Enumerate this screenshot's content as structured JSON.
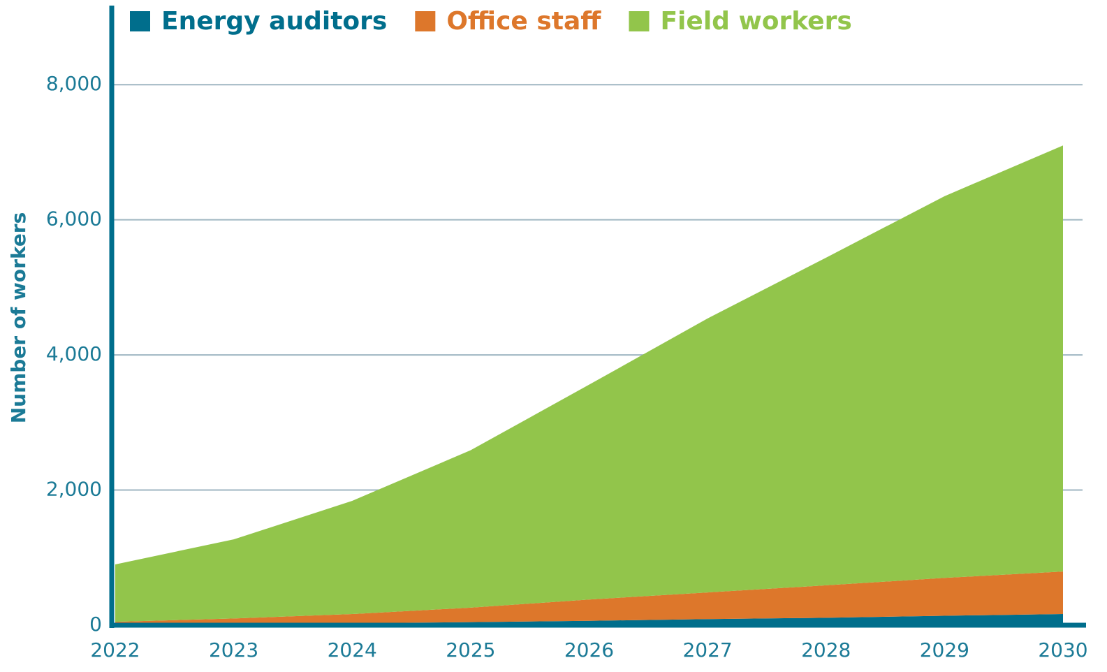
{
  "chart_data": {
    "type": "stacked_area",
    "y_label": "Number of workers",
    "categories": [
      "2022",
      "2023",
      "2024",
      "2025",
      "2026",
      "2027",
      "2028",
      "2029",
      "2030"
    ],
    "series": [
      {
        "name": "Energy auditors",
        "color": "#006e8c",
        "values": [
          10,
          20,
          30,
          45,
          65,
          90,
          110,
          140,
          165
        ]
      },
      {
        "name": "Office staff",
        "color": "#dd772b",
        "values": [
          40,
          80,
          135,
          215,
          315,
          395,
          480,
          560,
          630
        ]
      },
      {
        "name": "Field workers",
        "color": "#92c54b",
        "values": [
          850,
          1170,
          1675,
          2330,
          3180,
          4055,
          4850,
          5650,
          6305
        ]
      }
    ],
    "ylim": [
      0,
      9150
    ],
    "yticks": [
      0,
      {
        "value": 2000,
        "label": "2,000"
      },
      {
        "value": 4000,
        "label": "4,000"
      },
      {
        "value": 6000,
        "label": "6,000"
      },
      {
        "value": 8000,
        "label": "8,000"
      }
    ],
    "grid": true,
    "legend": "top"
  }
}
